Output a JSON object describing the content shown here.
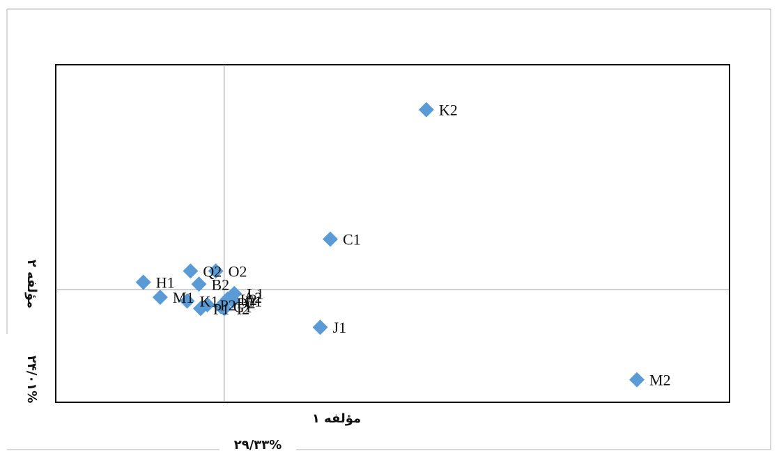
{
  "chart_data": {
    "type": "scatter",
    "title": "",
    "xlabel": "مؤلفه ۱",
    "ylabel": "مؤلفه ۲",
    "x_variance": "۲۹/۳۳%",
    "y_variance": "۲۴/۰۱%",
    "xlim": [
      -1.0,
      3.0
    ],
    "ylim": [
      -0.6,
      1.2
    ],
    "grid": false,
    "legend": "none",
    "marker_color": "#5B9BD5",
    "points": [
      {
        "label": "K2",
        "x": 1.2,
        "y": 0.96
      },
      {
        "label": "C1",
        "x": 0.63,
        "y": 0.27
      },
      {
        "label": "J1",
        "x": 0.57,
        "y": -0.2
      },
      {
        "label": "M2",
        "x": 2.45,
        "y": -0.48
      },
      {
        "label": "H1",
        "x": -0.48,
        "y": 0.04
      },
      {
        "label": "Q2",
        "x": -0.2,
        "y": 0.1
      },
      {
        "label": "O2",
        "x": -0.05,
        "y": 0.1
      },
      {
        "label": "M1",
        "x": -0.38,
        "y": -0.04
      },
      {
        "label": "K1",
        "x": -0.22,
        "y": -0.06
      },
      {
        "label": "P2",
        "x": -0.1,
        "y": -0.08
      },
      {
        "label": "P1",
        "x": -0.14,
        "y": -0.1
      },
      {
        "label": "B2",
        "x": -0.15,
        "y": 0.03
      },
      {
        "label": "L2",
        "x": 0.02,
        "y": -0.05
      },
      {
        "label": "L1",
        "x": 0.06,
        "y": -0.02
      },
      {
        "label": "D2",
        "x": 0.0,
        "y": -0.07
      },
      {
        "label": "A2",
        "x": 0.04,
        "y": -0.04
      },
      {
        "label": "E1",
        "x": 0.05,
        "y": -0.06
      },
      {
        "label": "I2",
        "x": 0.0,
        "y": -0.1
      },
      {
        "label": "G1",
        "x": -0.02,
        "y": -0.09
      }
    ]
  },
  "colors": {
    "marker": "#5B9BD5",
    "frame": "#000000",
    "axis": "#9a9a9a",
    "outer_border": "#b0b0b0"
  }
}
